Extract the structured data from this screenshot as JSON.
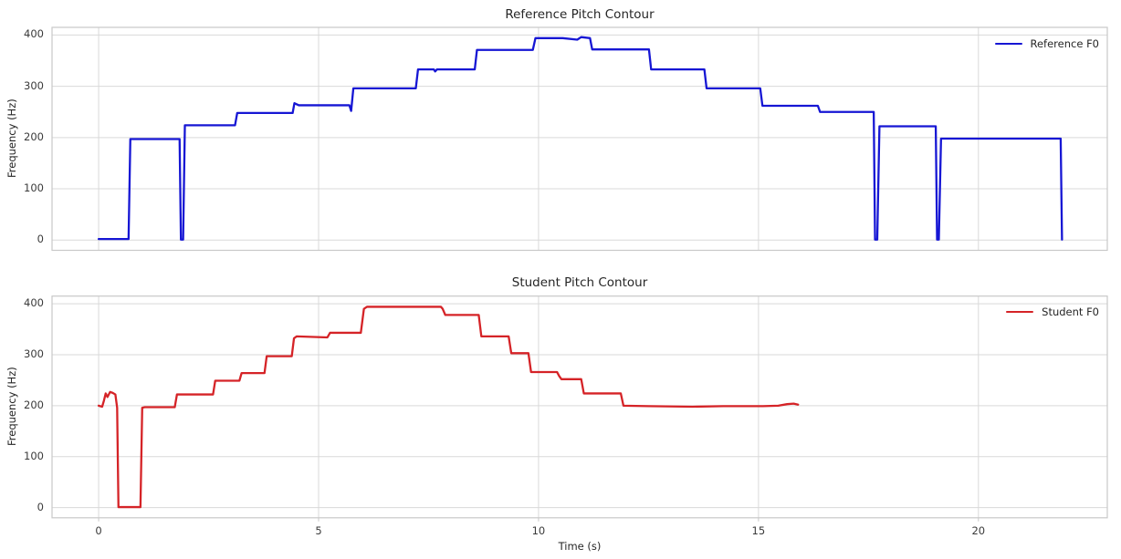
{
  "figure": {
    "background": "#ffffff",
    "grid_color": "#d9d9d9",
    "spine_color": "#c8c8c8",
    "text_color": "#262626"
  },
  "chart_data": [
    {
      "type": "line",
      "title": "Reference Pitch Contour",
      "xlabel": "",
      "ylabel": "Frequency (Hz)",
      "xlim": [
        -1.06,
        22.93
      ],
      "ylim": [
        -20,
        415
      ],
      "xticks": [
        0,
        5,
        10,
        15,
        20
      ],
      "xtick_labels": [
        "0",
        "5",
        "10",
        "15",
        "20"
      ],
      "yticks": [
        0,
        100,
        200,
        300,
        400
      ],
      "ytick_labels": [
        "0",
        "100",
        "200",
        "300",
        "400"
      ],
      "grid": true,
      "show_xtick_labels": false,
      "legend_position": "upper right",
      "series": [
        {
          "name": "Reference F0",
          "color": "#1616d4",
          "linewidth": 2.3,
          "points": [
            [
              0.0,
              2
            ],
            [
              0.68,
              2
            ],
            [
              0.72,
              197
            ],
            [
              1.84,
              197
            ],
            [
              1.87,
              1
            ],
            [
              1.92,
              1
            ],
            [
              1.96,
              224
            ],
            [
              3.1,
              224
            ],
            [
              3.15,
              248
            ],
            [
              4.41,
              248
            ],
            [
              4.45,
              267
            ],
            [
              4.55,
              263
            ],
            [
              5.7,
              263
            ],
            [
              5.74,
              252
            ],
            [
              5.79,
              296
            ],
            [
              7.21,
              296
            ],
            [
              7.26,
              333
            ],
            [
              7.62,
              333
            ],
            [
              7.65,
              329
            ],
            [
              7.69,
              333
            ],
            [
              8.55,
              333
            ],
            [
              8.6,
              371
            ],
            [
              9.87,
              371
            ],
            [
              9.93,
              394
            ],
            [
              10.55,
              394
            ],
            [
              10.88,
              391
            ],
            [
              10.97,
              396
            ],
            [
              11.17,
              394
            ],
            [
              11.22,
              372
            ],
            [
              12.51,
              372
            ],
            [
              12.56,
              333
            ],
            [
              13.77,
              333
            ],
            [
              13.82,
              296
            ],
            [
              15.04,
              296
            ],
            [
              15.09,
              262
            ],
            [
              16.35,
              262
            ],
            [
              16.4,
              250
            ],
            [
              17.62,
              250
            ],
            [
              17.65,
              1
            ],
            [
              17.7,
              1
            ],
            [
              17.75,
              222
            ],
            [
              19.03,
              222
            ],
            [
              19.06,
              1
            ],
            [
              19.1,
              1
            ],
            [
              19.15,
              198
            ],
            [
              21.87,
              198
            ],
            [
              21.9,
              1
            ]
          ]
        }
      ]
    },
    {
      "type": "line",
      "title": "Student Pitch Contour",
      "xlabel": "Time (s)",
      "ylabel": "Frequency (Hz)",
      "xlim": [
        -1.06,
        22.93
      ],
      "ylim": [
        -20,
        415
      ],
      "xticks": [
        0,
        5,
        10,
        15,
        20
      ],
      "xtick_labels": [
        "0",
        "5",
        "10",
        "15",
        "20"
      ],
      "yticks": [
        0,
        100,
        200,
        300,
        400
      ],
      "ytick_labels": [
        "0",
        "100",
        "200",
        "300",
        "400"
      ],
      "grid": true,
      "show_xtick_labels": true,
      "legend_position": "upper right",
      "series": [
        {
          "name": "Student F0",
          "color": "#d52327",
          "linewidth": 2.3,
          "points": [
            [
              0.0,
              200
            ],
            [
              0.08,
              198
            ],
            [
              0.12,
              210
            ],
            [
              0.16,
              224
            ],
            [
              0.2,
              217
            ],
            [
              0.26,
              227
            ],
            [
              0.32,
              225
            ],
            [
              0.38,
              222
            ],
            [
              0.42,
              196
            ],
            [
              0.45,
              1
            ],
            [
              0.95,
              1
            ],
            [
              0.99,
              196
            ],
            [
              1.05,
              197
            ],
            [
              1.73,
              197
            ],
            [
              1.78,
              222
            ],
            [
              2.6,
              222
            ],
            [
              2.65,
              249
            ],
            [
              3.2,
              249
            ],
            [
              3.25,
              264
            ],
            [
              3.77,
              264
            ],
            [
              3.82,
              297
            ],
            [
              4.39,
              297
            ],
            [
              4.44,
              332
            ],
            [
              4.5,
              336
            ],
            [
              5.2,
              334
            ],
            [
              5.26,
              343
            ],
            [
              5.96,
              343
            ],
            [
              6.03,
              390
            ],
            [
              6.1,
              394
            ],
            [
              7.78,
              394
            ],
            [
              7.82,
              390
            ],
            [
              7.88,
              378
            ],
            [
              8.64,
              378
            ],
            [
              8.7,
              336
            ],
            [
              9.32,
              336
            ],
            [
              9.38,
              303
            ],
            [
              9.77,
              303
            ],
            [
              9.83,
              266
            ],
            [
              10.42,
              266
            ],
            [
              10.47,
              258
            ],
            [
              10.52,
              252
            ],
            [
              10.97,
              252
            ],
            [
              11.03,
              224
            ],
            [
              11.87,
              224
            ],
            [
              11.93,
              200
            ],
            [
              12.5,
              199
            ],
            [
              13.5,
              198
            ],
            [
              14.2,
              199
            ],
            [
              15.1,
              199
            ],
            [
              15.45,
              200
            ],
            [
              15.65,
              203
            ],
            [
              15.8,
              204
            ],
            [
              15.9,
              202
            ]
          ]
        }
      ]
    }
  ]
}
